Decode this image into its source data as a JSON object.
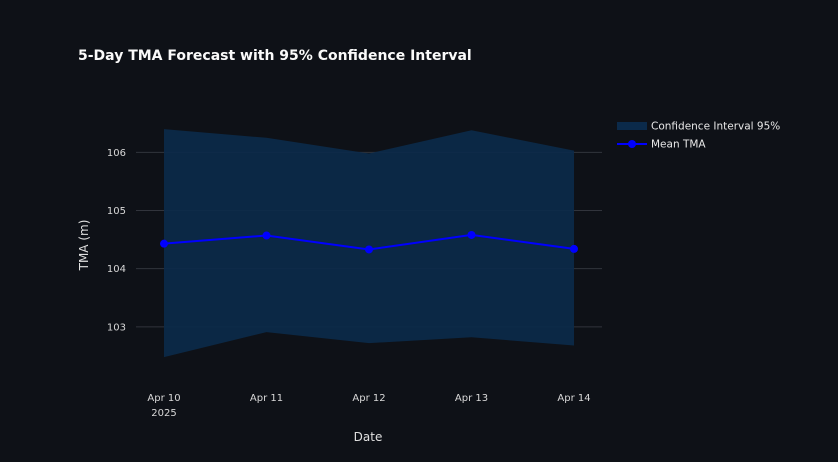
{
  "chart_data": {
    "type": "line",
    "title": "5-Day TMA Forecast with 95% Confidence Interval",
    "xlabel": "Date",
    "ylabel": "TMA (m)",
    "categories": [
      "Apr 10",
      "Apr 11",
      "Apr 12",
      "Apr 13",
      "Apr 14"
    ],
    "x_year_label": "2025",
    "ylim": [
      102.0,
      106.9
    ],
    "yticks": [
      103,
      104,
      105,
      106
    ],
    "grid": true,
    "legend_position": "top-right",
    "series": [
      {
        "name": "Confidence Interval 95%",
        "type": "band",
        "upper": [
          106.4,
          106.25,
          105.98,
          106.38,
          106.03
        ],
        "lower": [
          102.48,
          102.91,
          102.72,
          102.82,
          102.68
        ],
        "color": "#0b2a4a"
      },
      {
        "name": "Mean TMA",
        "type": "line",
        "values": [
          104.43,
          104.57,
          104.33,
          104.58,
          104.34
        ],
        "color": "#0000ff"
      }
    ]
  }
}
